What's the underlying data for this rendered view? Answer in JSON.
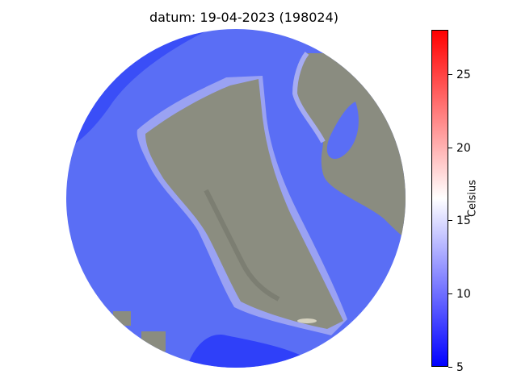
{
  "title": "datum: 19-04-2023 (198024)",
  "colorbar": {
    "label": "Celsius",
    "min": 5,
    "max": 28,
    "ticks": [
      "5",
      "10",
      "15",
      "20",
      "25"
    ],
    "colors": {
      "low": "#0000ff",
      "mid": "#ffffff",
      "high": "#ff0000"
    }
  },
  "map": {
    "water_color": "#5a6ef5",
    "deep_water_color": "#2a3cf8",
    "land_color": "#8c8c80",
    "shore_color": "#a6acf2"
  }
}
